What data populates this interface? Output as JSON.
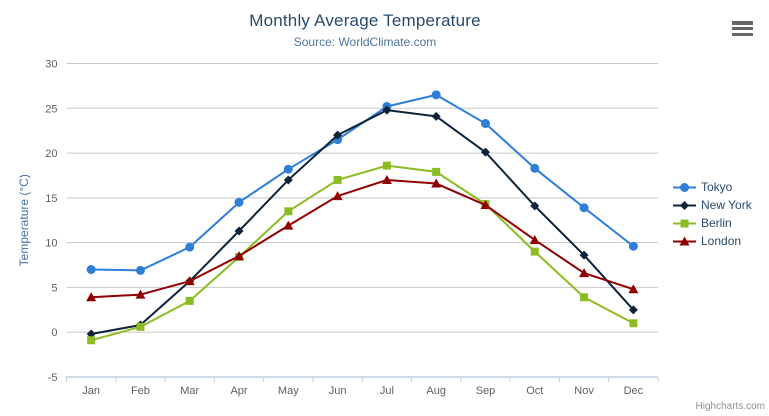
{
  "header": {
    "title": "Monthly Average Temperature",
    "subtitle": "Source: WorldClimate.com"
  },
  "credits": {
    "label": "Highcharts.com"
  },
  "chart_data": {
    "type": "line",
    "title": "Monthly Average Temperature",
    "subtitle": "Source: WorldClimate.com",
    "categories": [
      "Jan",
      "Feb",
      "Mar",
      "Apr",
      "May",
      "Jun",
      "Jul",
      "Aug",
      "Sep",
      "Oct",
      "Nov",
      "Dec"
    ],
    "series": [
      {
        "name": "Tokyo",
        "color": "#2f7ed8",
        "marker": "circle",
        "values": [
          7.0,
          6.9,
          9.5,
          14.5,
          18.2,
          21.5,
          25.2,
          26.5,
          23.3,
          18.3,
          13.9,
          9.6
        ]
      },
      {
        "name": "New York",
        "color": "#0d233a",
        "marker": "diamond",
        "values": [
          -0.2,
          0.8,
          5.7,
          11.3,
          17.0,
          22.0,
          24.8,
          24.1,
          20.1,
          14.1,
          8.6,
          2.5
        ]
      },
      {
        "name": "Berlin",
        "color": "#8bbc21",
        "marker": "square",
        "values": [
          -0.9,
          0.6,
          3.5,
          8.4,
          13.5,
          17.0,
          18.6,
          17.9,
          14.3,
          9.0,
          3.9,
          1.0
        ]
      },
      {
        "name": "London",
        "color": "#910000",
        "marker": "triangle",
        "values": [
          3.9,
          4.2,
          5.7,
          8.5,
          11.9,
          15.2,
          17.0,
          16.6,
          14.2,
          10.3,
          6.6,
          4.8
        ]
      }
    ],
    "xlabel": "",
    "ylabel": "Temperature (°C)",
    "ylim": [
      -5,
      30
    ],
    "ytick_interval": 5,
    "yticks": [
      -5,
      0,
      5,
      10,
      15,
      20,
      25,
      30
    ],
    "grid": true,
    "legend_position": "right"
  },
  "colors": {
    "title": "#274b6d",
    "subtitle": "#4d759e",
    "axis_label": "#606060",
    "axis_line": "#c0d0e0",
    "gridline": "#c8c8c8",
    "y_axis_title": "#4572a7",
    "legend_text": "#274b6d",
    "credits": "#909090",
    "export_icon": "#666666",
    "background": "#ffffff"
  }
}
